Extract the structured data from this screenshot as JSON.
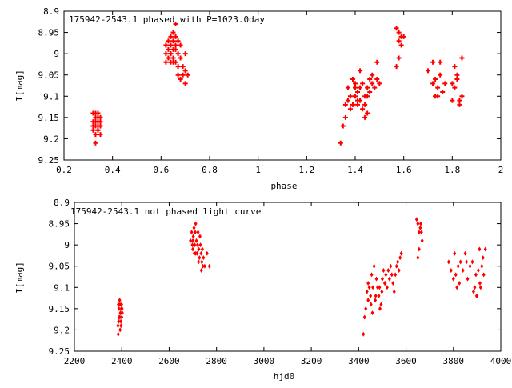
{
  "chart_data": [
    {
      "type": "scatter",
      "title": "175942-2543.1 phased with P=1023.0day",
      "xlabel": "phase",
      "ylabel": "I[mag]",
      "xlim": [
        0.2,
        2.0
      ],
      "ylim": [
        8.9,
        9.25
      ],
      "y_inverted": true,
      "xticks": [
        "0.2",
        "0.4",
        "0.6",
        "0.8",
        "1",
        "1.2",
        "1.4",
        "1.6",
        "1.8",
        "2"
      ],
      "xtick_values": [
        0.2,
        0.4,
        0.6,
        0.8,
        1.0,
        1.2,
        1.4,
        1.6,
        1.8,
        2.0
      ],
      "yticks": [
        "8.9",
        "8.95",
        "9",
        "9.05",
        "9.1",
        "9.15",
        "9.2",
        "9.25"
      ],
      "ytick_values": [
        8.9,
        8.95,
        9.0,
        9.05,
        9.1,
        9.15,
        9.2,
        9.25
      ],
      "grid": false,
      "marker_color": "#ff0000",
      "marker": "cross",
      "x": [
        0.32,
        0.32,
        0.32,
        0.33,
        0.33,
        0.33,
        0.33,
        0.33,
        0.34,
        0.34,
        0.34,
        0.34,
        0.34,
        0.35,
        0.35,
        0.35,
        0.35,
        0.33,
        0.34,
        0.32,
        0.35,
        0.34,
        0.62,
        0.62,
        0.62,
        0.63,
        0.63,
        0.63,
        0.64,
        0.64,
        0.64,
        0.64,
        0.65,
        0.65,
        0.65,
        0.65,
        0.66,
        0.66,
        0.66,
        0.66,
        0.67,
        0.67,
        0.67,
        0.68,
        0.68,
        0.69,
        0.69,
        0.7,
        0.7,
        0.71,
        0.64,
        0.66,
        0.63,
        0.65,
        0.67,
        0.68,
        0.7,
        0.62,
        1.34,
        1.35,
        1.36,
        1.37,
        1.37,
        1.38,
        1.39,
        1.39,
        1.4,
        1.4,
        1.41,
        1.41,
        1.42,
        1.42,
        1.43,
        1.43,
        1.44,
        1.44,
        1.45,
        1.45,
        1.46,
        1.47,
        1.47,
        1.48,
        1.49,
        1.49,
        1.5,
        1.38,
        1.41,
        1.44,
        1.46,
        1.45,
        1.42,
        1.4,
        1.36,
        1.57,
        1.58,
        1.58,
        1.59,
        1.59,
        1.6,
        1.58,
        1.57,
        1.7,
        1.72,
        1.72,
        1.73,
        1.73,
        1.74,
        1.75,
        1.75,
        1.76,
        1.77,
        1.8,
        1.8,
        1.81,
        1.82,
        1.82,
        1.83,
        1.84,
        1.84,
        1.81,
        1.83,
        1.74
      ],
      "y": [
        9.14,
        9.16,
        9.18,
        9.15,
        9.17,
        9.19,
        9.14,
        9.16,
        9.15,
        9.17,
        9.18,
        9.16,
        9.14,
        9.15,
        9.17,
        9.19,
        9.16,
        9.21,
        9.18,
        9.17,
        9.15,
        9.16,
        9.0,
        8.98,
        9.02,
        8.97,
        8.99,
        9.01,
        8.96,
        8.98,
        9.0,
        9.02,
        8.95,
        8.97,
        8.99,
        9.01,
        8.93,
        8.96,
        8.98,
        9.02,
        8.97,
        9.0,
        9.03,
        8.98,
        9.01,
        9.03,
        9.05,
        9.0,
        9.04,
        9.05,
        9.0,
        8.99,
        9.01,
        9.02,
        9.05,
        9.06,
        9.07,
        8.98,
        9.21,
        9.17,
        9.15,
        9.11,
        9.08,
        9.1,
        9.12,
        9.06,
        9.1,
        9.08,
        9.12,
        9.09,
        9.04,
        9.11,
        9.13,
        9.07,
        9.1,
        9.12,
        9.14,
        9.08,
        9.06,
        9.05,
        9.07,
        9.08,
        9.02,
        9.06,
        9.07,
        9.13,
        9.11,
        9.15,
        9.09,
        9.1,
        9.08,
        9.07,
        9.12,
        8.94,
        8.95,
        8.97,
        8.96,
        8.98,
        8.96,
        9.01,
        9.03,
        9.04,
        9.02,
        9.07,
        9.06,
        9.1,
        9.08,
        9.02,
        9.05,
        9.09,
        9.07,
        9.11,
        9.07,
        9.03,
        9.06,
        9.05,
        9.11,
        9.01,
        9.1,
        9.08,
        9.12,
        9.1
      ]
    },
    {
      "type": "scatter",
      "title": "175942-2543.1 not phased light curve",
      "xlabel": "hjd0",
      "ylabel": "I[mag]",
      "xlim": [
        2200,
        4000
      ],
      "ylim": [
        8.9,
        9.25
      ],
      "y_inverted": true,
      "xticks": [
        "2200",
        "2400",
        "2600",
        "2800",
        "3000",
        "3200",
        "3400",
        "3600",
        "3800",
        "4000"
      ],
      "xtick_values": [
        2200,
        2400,
        2600,
        2800,
        3000,
        3200,
        3400,
        3600,
        3800,
        4000
      ],
      "yticks": [
        "8.9",
        "8.95",
        "9",
        "9.05",
        "9.1",
        "9.15",
        "9.2",
        "9.25"
      ],
      "ytick_values": [
        8.9,
        8.95,
        9.0,
        9.05,
        9.1,
        9.15,
        9.2,
        9.25
      ],
      "grid": false,
      "marker_color": "#ff0000",
      "marker": "diamond",
      "x": [
        2385,
        2388,
        2390,
        2392,
        2394,
        2396,
        2398,
        2400,
        2402,
        2384,
        2393,
        2399,
        2391,
        2387,
        2395,
        2401,
        2389,
        2397,
        2386,
        2392,
        2690,
        2695,
        2700,
        2702,
        2705,
        2708,
        2710,
        2712,
        2715,
        2718,
        2720,
        2722,
        2725,
        2728,
        2730,
        2732,
        2735,
        2738,
        2740,
        2745,
        2750,
        2760,
        2770,
        2700,
        2712,
        2724,
        2736,
        2698,
        2706,
        2742,
        3420,
        3425,
        3430,
        3435,
        3440,
        3445,
        3450,
        3455,
        3460,
        3465,
        3470,
        3475,
        3480,
        3485,
        3490,
        3495,
        3500,
        3505,
        3510,
        3515,
        3520,
        3525,
        3530,
        3535,
        3540,
        3545,
        3550,
        3555,
        3560,
        3565,
        3570,
        3575,
        3580,
        3458,
        3472,
        3488,
        3498,
        3512,
        3440,
        3452,
        3645,
        3650,
        3655,
        3660,
        3662,
        3665,
        3668,
        3655,
        3650,
        3780,
        3790,
        3800,
        3805,
        3810,
        3815,
        3820,
        3830,
        3840,
        3850,
        3860,
        3870,
        3880,
        3890,
        3895,
        3900,
        3905,
        3910,
        3915,
        3920,
        3925,
        3928,
        3935,
        3825,
        3855,
        3885,
        3912,
        3898
      ],
      "y": [
        9.21,
        9.15,
        9.17,
        9.14,
        9.16,
        9.18,
        9.15,
        9.17,
        9.16,
        9.19,
        9.2,
        9.14,
        9.13,
        9.18,
        9.16,
        9.15,
        9.17,
        9.19,
        9.14,
        9.17,
        8.99,
        8.97,
        9.01,
        8.98,
        8.96,
        9.0,
        8.97,
        8.95,
        8.99,
        9.02,
        9.0,
        8.97,
        9.01,
        9.03,
        8.98,
        9.0,
        9.02,
        9.04,
        9.01,
        9.03,
        9.05,
        9.02,
        9.05,
        8.99,
        9.02,
        9.04,
        9.06,
        9.0,
        9.02,
        9.05,
        9.21,
        9.17,
        9.15,
        9.11,
        9.09,
        9.1,
        9.12,
        9.07,
        9.1,
        9.05,
        9.13,
        9.08,
        9.1,
        9.12,
        9.15,
        9.14,
        9.08,
        9.06,
        9.09,
        9.07,
        9.1,
        9.06,
        9.08,
        9.05,
        9.07,
        9.09,
        9.11,
        9.07,
        9.05,
        9.04,
        9.06,
        9.03,
        9.02,
        9.16,
        9.12,
        9.1,
        9.11,
        9.09,
        9.13,
        9.14,
        8.94,
        8.95,
        8.97,
        8.96,
        8.95,
        8.97,
        8.99,
        9.01,
        9.03,
        9.04,
        9.06,
        9.08,
        9.02,
        9.07,
        9.1,
        9.05,
        9.04,
        9.06,
        9.02,
        9.08,
        9.05,
        9.04,
        9.1,
        9.07,
        9.12,
        9.06,
        9.01,
        9.1,
        9.05,
        9.03,
        9.07,
        9.01,
        9.09,
        9.04,
        9.11,
        9.09,
        9.12
      ]
    }
  ]
}
